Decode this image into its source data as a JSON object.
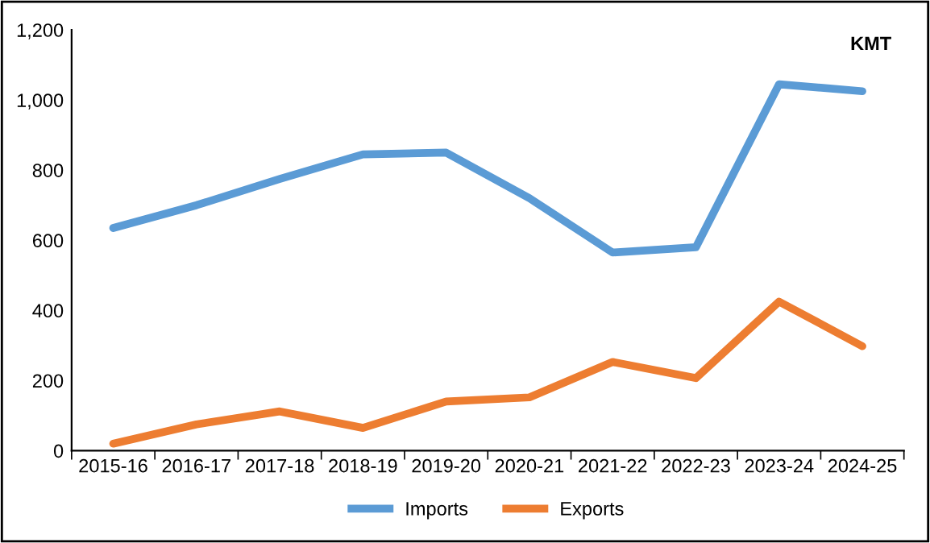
{
  "chart_data": {
    "type": "line",
    "categories": [
      "2015-16",
      "2016-17",
      "2017-18",
      "2018-19",
      "2019-20",
      "2020-21",
      "2021-22",
      "2022-23",
      "2023-24",
      "2024-25"
    ],
    "series": [
      {
        "name": "Imports",
        "color": "#5b9bd5",
        "values": [
          635,
          700,
          775,
          845,
          850,
          720,
          565,
          580,
          1045,
          1025
        ]
      },
      {
        "name": "Exports",
        "color": "#ed7d31",
        "values": [
          20,
          75,
          112,
          65,
          140,
          152,
          253,
          207,
          425,
          298
        ]
      }
    ],
    "ylim": [
      0,
      1200
    ],
    "yticks": [
      {
        "value": 0,
        "label": "0"
      },
      {
        "value": 200,
        "label": "200"
      },
      {
        "value": 400,
        "label": "400"
      },
      {
        "value": 600,
        "label": "600"
      },
      {
        "value": 800,
        "label": "800"
      },
      {
        "value": 1000,
        "label": "1,000"
      },
      {
        "value": 1200,
        "label": "1,200"
      }
    ],
    "annotations": [
      "KMT"
    ],
    "legend": "bottom",
    "grid": false,
    "marker": "none",
    "line_style": "solid"
  }
}
